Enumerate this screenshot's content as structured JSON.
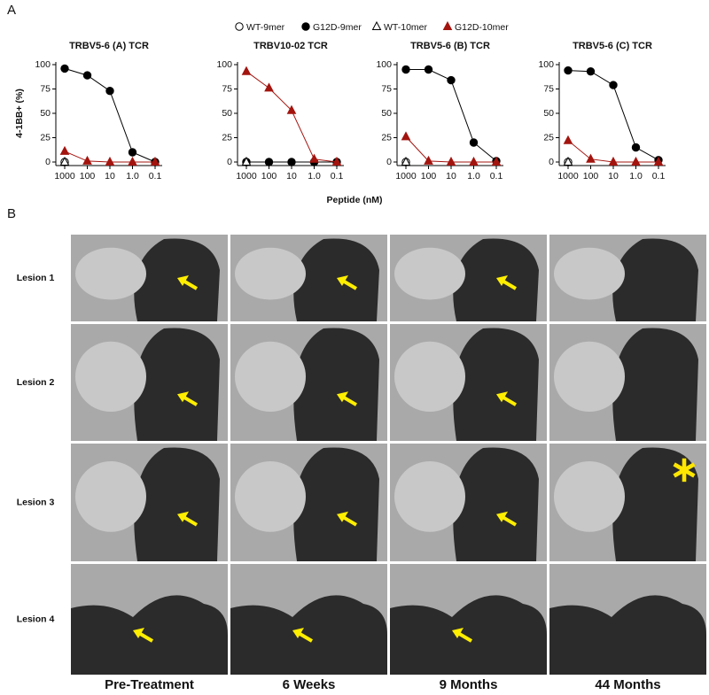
{
  "figure": {
    "panel_a_label": "A",
    "panel_b_label": "B",
    "x_label": "Peptide (nM)"
  },
  "chart_data": [
    {
      "type": "line",
      "title": "TRBV5-6 (A) TCR",
      "y_label": "4-1BB+ (%)",
      "categories": [
        "1000",
        "100",
        "10",
        "1.0",
        "0.1"
      ],
      "ylim": [
        0,
        100
      ],
      "yticks": [
        0,
        25,
        50,
        75,
        100
      ],
      "series": [
        {
          "name": "WT-9mer",
          "color": "#000000",
          "marker": "circle",
          "filled": false,
          "values": [
            0,
            null,
            null,
            null,
            null
          ]
        },
        {
          "name": "G12D-9mer",
          "color": "#000000",
          "marker": "circle",
          "filled": true,
          "values": [
            96,
            89,
            73,
            10,
            0
          ]
        },
        {
          "name": "WT-10mer",
          "color": "#000000",
          "marker": "triangle",
          "filled": false,
          "values": [
            0,
            null,
            null,
            null,
            null
          ]
        },
        {
          "name": "G12D-10mer",
          "color": "#a3140f",
          "marker": "triangle",
          "filled": true,
          "values": [
            11,
            1,
            0,
            0,
            0
          ]
        }
      ]
    },
    {
      "type": "line",
      "title": "TRBV10-02 TCR",
      "categories": [
        "1000",
        "100",
        "10",
        "1.0",
        "0.1"
      ],
      "ylim": [
        0,
        100
      ],
      "yticks": [
        0,
        25,
        50,
        75,
        100
      ],
      "series": [
        {
          "values": [
            0,
            null,
            null,
            null,
            null
          ]
        },
        {
          "values": [
            0,
            0,
            0,
            0,
            0
          ]
        },
        {
          "values": [
            0,
            null,
            null,
            null,
            null
          ]
        },
        {
          "values": [
            93,
            76,
            53,
            3,
            0
          ]
        }
      ]
    },
    {
      "type": "line",
      "title": "TRBV5-6 (B) TCR",
      "categories": [
        "1000",
        "100",
        "10",
        "1.0",
        "0.1"
      ],
      "ylim": [
        0,
        100
      ],
      "yticks": [
        0,
        25,
        50,
        75,
        100
      ],
      "series": [
        {
          "values": [
            0,
            null,
            null,
            null,
            null
          ]
        },
        {
          "values": [
            95,
            95,
            84,
            20,
            1
          ]
        },
        {
          "values": [
            0,
            null,
            null,
            null,
            null
          ]
        },
        {
          "values": [
            26,
            1,
            0,
            0,
            0
          ]
        }
      ]
    },
    {
      "type": "line",
      "title": "TRBV5-6 (C) TCR",
      "categories": [
        "1000",
        "100",
        "10",
        "1.0",
        "0.1"
      ],
      "ylim": [
        0,
        100
      ],
      "yticks": [
        0,
        25,
        50,
        75,
        100
      ],
      "series": [
        {
          "values": [
            0,
            null,
            null,
            null,
            null
          ]
        },
        {
          "values": [
            94,
            93,
            79,
            15,
            2
          ]
        },
        {
          "values": [
            0,
            null,
            null,
            null,
            null
          ]
        },
        {
          "values": [
            22,
            3,
            0,
            0,
            0
          ]
        }
      ]
    }
  ],
  "ct_grid": {
    "rows": [
      "Lesion 1",
      "Lesion 2",
      "Lesion 3",
      "Lesion 4"
    ],
    "columns": [
      "Pre-Treatment",
      "6 Weeks",
      "9 Months",
      "44 Months"
    ]
  }
}
